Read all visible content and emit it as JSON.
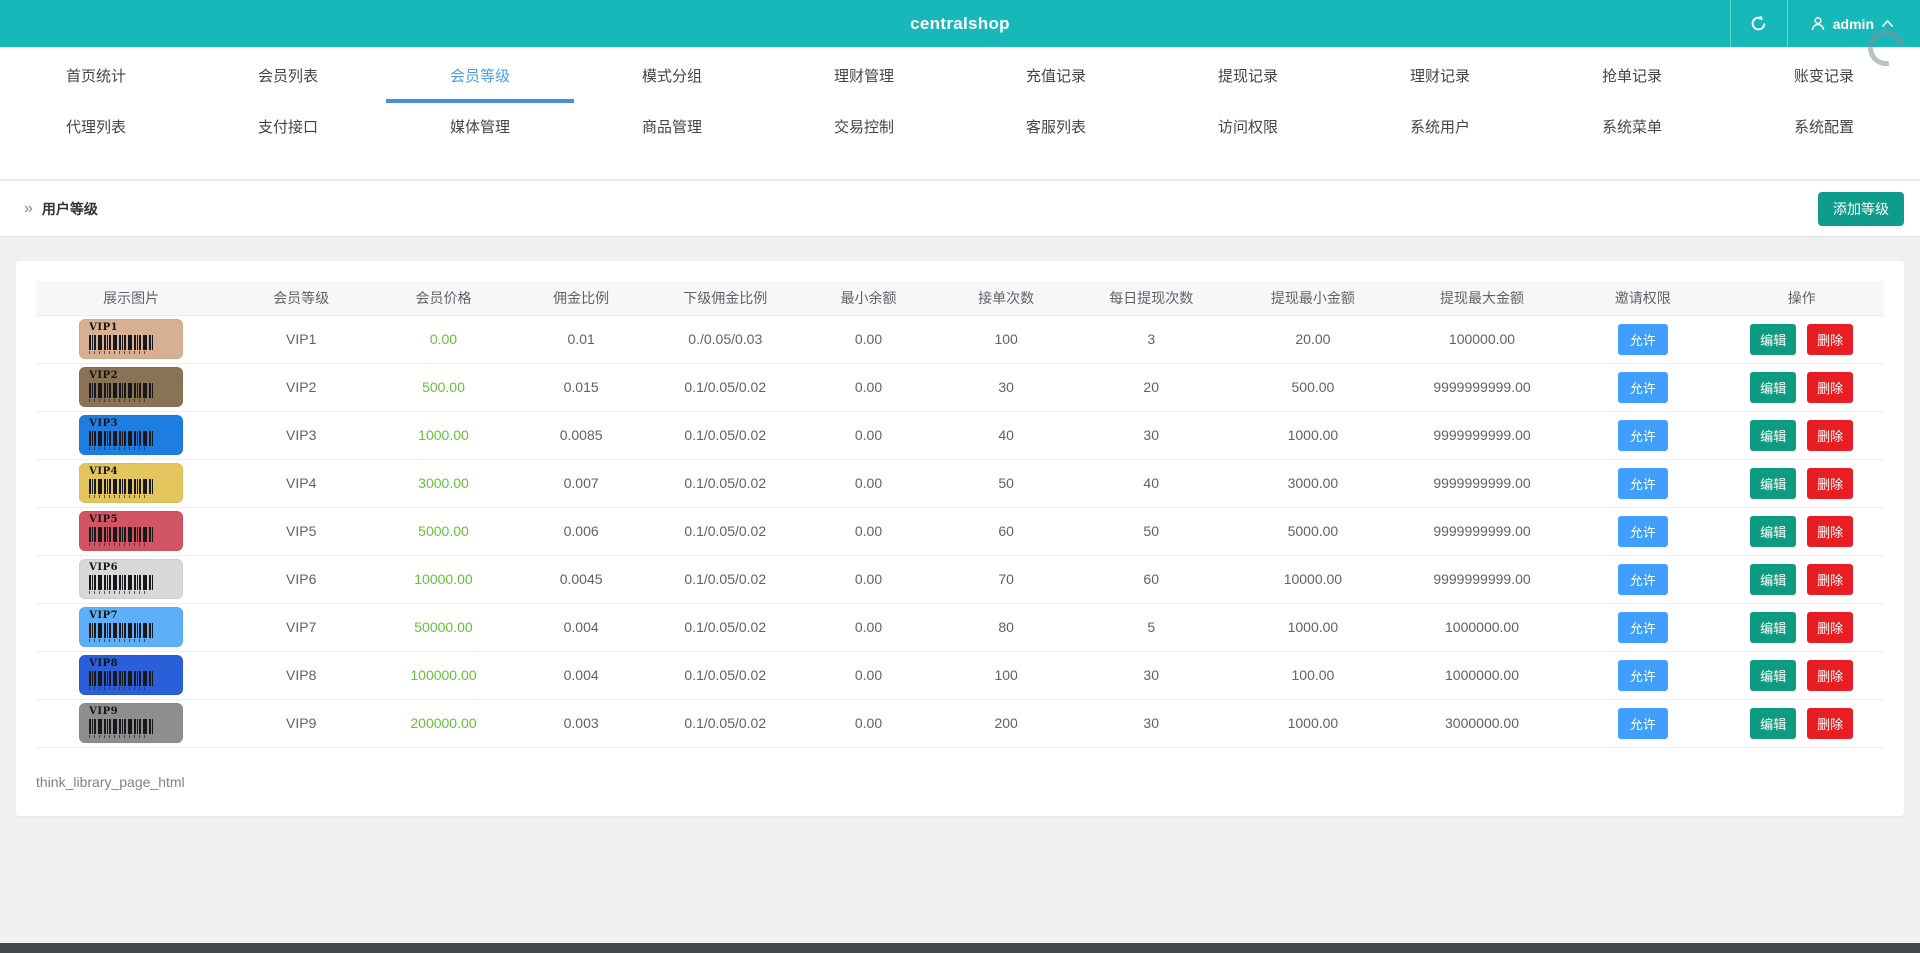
{
  "app": {
    "title": "centralshop"
  },
  "topbar": {
    "username": "admin"
  },
  "icons": {
    "breadcrumb_chevron": "»"
  },
  "nav": {
    "active": "会员等级",
    "row1": [
      "首页统计",
      "会员列表",
      "会员等级",
      "模式分组",
      "理财管理",
      "充值记录",
      "提现记录",
      "理财记录",
      "抢单记录",
      "账变记录"
    ],
    "row2": [
      "代理列表",
      "支付接口",
      "媒体管理",
      "商品管理",
      "交易控制",
      "客服列表",
      "访问权限",
      "系统用户",
      "系统菜单",
      "系统配置"
    ]
  },
  "breadcrumb": {
    "label": "用户等级"
  },
  "toolbar": {
    "add_level_label": "添加等级"
  },
  "table": {
    "columns": [
      "展示图片",
      "会员等级",
      "会员价格",
      "佣金比例",
      "下级佣金比例",
      "最小余额",
      "接单次数",
      "每日提现次数",
      "提现最小金额",
      "提现最大金额",
      "邀请权限",
      "操作"
    ],
    "action_labels": {
      "invite": "允许",
      "edit": "编辑",
      "delete": "删除"
    },
    "rows": [
      {
        "level": "VIP1",
        "price": "0.00",
        "commission": "0.01",
        "sub_commission": "0./0.05/0.03",
        "min_balance": "0.00",
        "order_count": "100",
        "daily_withdraw_count": "3",
        "withdraw_min": "20.00",
        "withdraw_max": "100000.00",
        "badge_color": "#d7b091"
      },
      {
        "level": "VIP2",
        "price": "500.00",
        "commission": "0.015",
        "sub_commission": "0.1/0.05/0.02",
        "min_balance": "0.00",
        "order_count": "30",
        "daily_withdraw_count": "20",
        "withdraw_min": "500.00",
        "withdraw_max": "9999999999.00",
        "badge_color": "#8a7354"
      },
      {
        "level": "VIP3",
        "price": "1000.00",
        "commission": "0.0085",
        "sub_commission": "0.1/0.05/0.02",
        "min_balance": "0.00",
        "order_count": "40",
        "daily_withdraw_count": "30",
        "withdraw_min": "1000.00",
        "withdraw_max": "9999999999.00",
        "badge_color": "#1e7de0"
      },
      {
        "level": "VIP4",
        "price": "3000.00",
        "commission": "0.007",
        "sub_commission": "0.1/0.05/0.02",
        "min_balance": "0.00",
        "order_count": "50",
        "daily_withdraw_count": "40",
        "withdraw_min": "3000.00",
        "withdraw_max": "9999999999.00",
        "badge_color": "#e3c55e"
      },
      {
        "level": "VIP5",
        "price": "5000.00",
        "commission": "0.006",
        "sub_commission": "0.1/0.05/0.02",
        "min_balance": "0.00",
        "order_count": "60",
        "daily_withdraw_count": "50",
        "withdraw_min": "5000.00",
        "withdraw_max": "9999999999.00",
        "badge_color": "#d25563"
      },
      {
        "level": "VIP6",
        "price": "10000.00",
        "commission": "0.0045",
        "sub_commission": "0.1/0.05/0.02",
        "min_balance": "0.00",
        "order_count": "70",
        "daily_withdraw_count": "60",
        "withdraw_min": "10000.00",
        "withdraw_max": "9999999999.00",
        "badge_color": "#d8d8d8"
      },
      {
        "level": "VIP7",
        "price": "50000.00",
        "commission": "0.004",
        "sub_commission": "0.1/0.05/0.02",
        "min_balance": "0.00",
        "order_count": "80",
        "daily_withdraw_count": "5",
        "withdraw_min": "1000.00",
        "withdraw_max": "1000000.00",
        "badge_color": "#5db0f7"
      },
      {
        "level": "VIP8",
        "price": "100000.00",
        "commission": "0.004",
        "sub_commission": "0.1/0.05/0.02",
        "min_balance": "0.00",
        "order_count": "100",
        "daily_withdraw_count": "30",
        "withdraw_min": "100.00",
        "withdraw_max": "1000000.00",
        "badge_color": "#2b5fd9"
      },
      {
        "level": "VIP9",
        "price": "200000.00",
        "commission": "0.003",
        "sub_commission": "0.1/0.05/0.02",
        "min_balance": "0.00",
        "order_count": "200",
        "daily_withdraw_count": "30",
        "withdraw_min": "1000.00",
        "withdraw_max": "3000000.00",
        "badge_color": "#8e8e8e"
      }
    ]
  },
  "footer": {
    "text": "think_library_page_html"
  },
  "colors": {
    "topbar": "#17b8ba",
    "active_tab": "#4a9eea",
    "price_green": "#67c23a",
    "invite_button": "#409eff",
    "edit_button": "#0f9b82",
    "delete_button": "#e91e25",
    "add_button": "#0f9c8d"
  }
}
